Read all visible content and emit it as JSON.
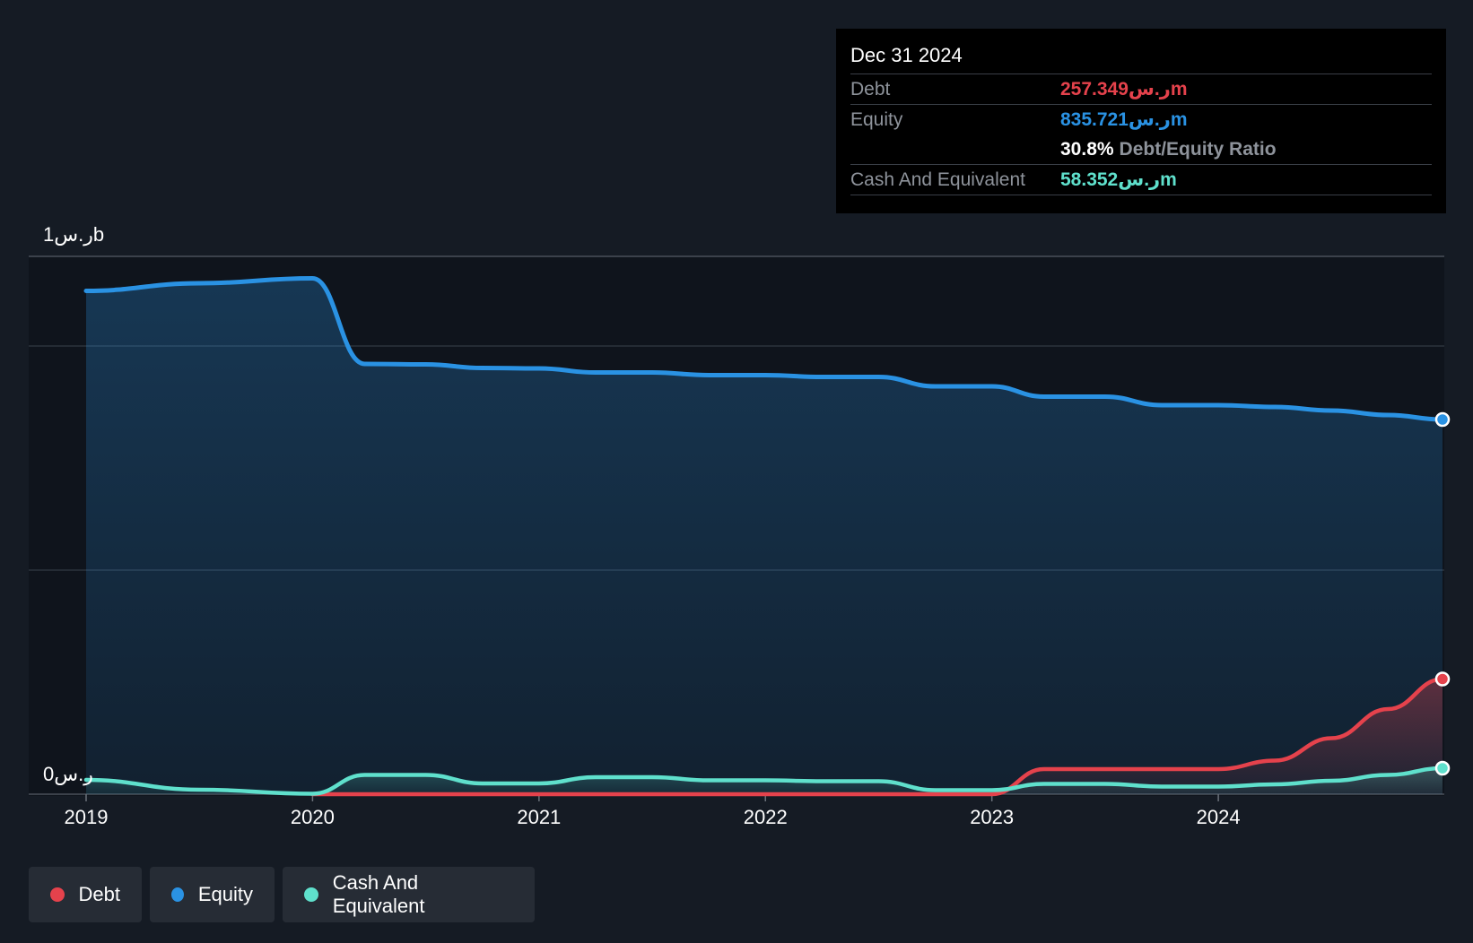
{
  "colors": {
    "debt": "#e5424c",
    "equity": "#2a92e3",
    "cash": "#5fe0cc",
    "background": "#151b24",
    "plot_background": "#0f141c",
    "gridline": "#3a414b"
  },
  "tooltip": {
    "date": "Dec 31 2024",
    "debt_label": "Debt",
    "debt_value": "257.349ر.سm",
    "equity_label": "Equity",
    "equity_value": "835.721ر.سm",
    "ratio_value": "30.8%",
    "ratio_label": "Debt/Equity Ratio",
    "cash_label": "Cash And Equivalent",
    "cash_value": "58.352ر.سm"
  },
  "legend": [
    {
      "label": "Debt",
      "color_key": "debt"
    },
    {
      "label": "Equity",
      "color_key": "equity"
    },
    {
      "label": "Cash And Equivalent",
      "color_key": "cash"
    }
  ],
  "chart_data": {
    "type": "area",
    "title": "",
    "xlabel": "",
    "ylabel": "",
    "y_unit": "ر.سm",
    "ylim": [
      0,
      1200
    ],
    "y_tick_labels": [
      {
        "value": 1200,
        "label": "1ر.سb"
      },
      {
        "value": 0,
        "label": "0ر.س"
      }
    ],
    "y_gridlines": [
      1200,
      1000,
      500
    ],
    "x_range": [
      2019.0,
      2024.99
    ],
    "x_ticks": [
      {
        "value": 2019,
        "label": "2019"
      },
      {
        "value": 2020,
        "label": "2020"
      },
      {
        "value": 2021,
        "label": "2021"
      },
      {
        "value": 2022,
        "label": "2022"
      },
      {
        "value": 2023,
        "label": "2023"
      },
      {
        "value": 2024,
        "label": "2024"
      }
    ],
    "legend_position": "bottom-left",
    "series": [
      {
        "name": "Equity",
        "color_key": "equity",
        "x": [
          2019.0,
          2019.5,
          2020.0,
          2020.23,
          2020.5,
          2020.75,
          2021.0,
          2021.25,
          2021.5,
          2021.75,
          2022.0,
          2022.25,
          2022.5,
          2022.75,
          2023.0,
          2023.23,
          2023.5,
          2023.75,
          2024.0,
          2024.25,
          2024.5,
          2024.75,
          2024.99
        ],
        "y": [
          1123,
          1140,
          1151,
          960,
          959,
          951,
          950,
          941,
          941,
          935,
          935,
          931,
          931,
          910,
          910,
          887,
          887,
          868,
          868,
          864,
          856,
          846,
          836
        ]
      },
      {
        "name": "Debt",
        "color_key": "debt",
        "x": [
          2019.0,
          2020.0,
          2020.5,
          2021.0,
          2021.5,
          2022.0,
          2022.5,
          2023.0,
          2023.23,
          2023.5,
          2023.75,
          2024.0,
          2024.25,
          2024.5,
          2024.75,
          2024.99
        ],
        "y": [
          null,
          0,
          0,
          0,
          0,
          0,
          0,
          0,
          56,
          56,
          56,
          56,
          75,
          125,
          190,
          257
        ]
      },
      {
        "name": "Cash And Equivalent",
        "color_key": "cash",
        "x": [
          2019.0,
          2019.5,
          2020.0,
          2020.23,
          2020.5,
          2020.75,
          2021.0,
          2021.25,
          2021.5,
          2021.75,
          2022.0,
          2022.25,
          2022.5,
          2022.75,
          2023.0,
          2023.23,
          2023.5,
          2023.75,
          2024.0,
          2024.25,
          2024.5,
          2024.75,
          2024.99
        ],
        "y": [
          32,
          10,
          1,
          43,
          43,
          24,
          24,
          38,
          38,
          31,
          31,
          29,
          29,
          9,
          9,
          23,
          23,
          17,
          17,
          22,
          30,
          43,
          58
        ]
      }
    ]
  }
}
